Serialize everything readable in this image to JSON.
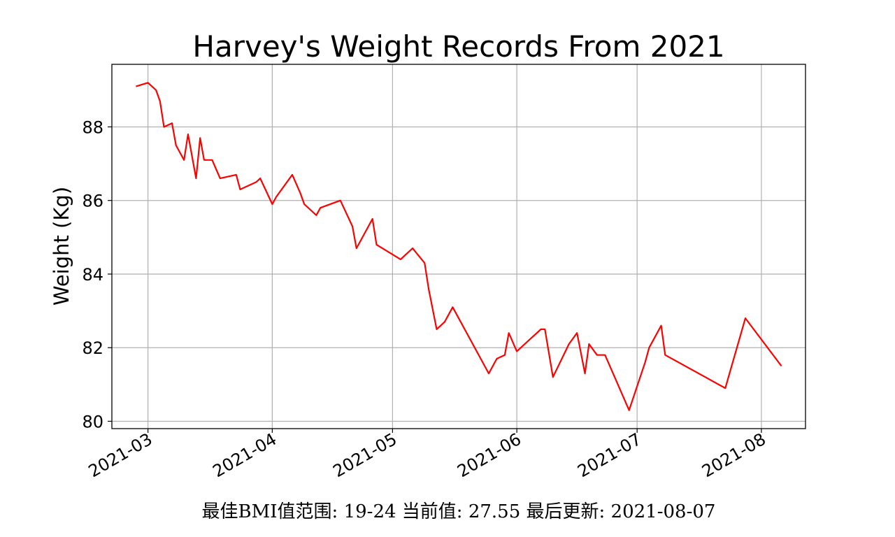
{
  "chart_data": {
    "type": "line",
    "title": "Harvey's Weight Records From 2021",
    "xlabel": "",
    "ylabel": "Weight (Kg)",
    "footer": "最佳BMI值范围: 19-24 当前值: 27.55 最后更新: 2021-08-07",
    "grid": true,
    "ylim": [
      79.8,
      89.7
    ],
    "yticks": [
      80,
      82,
      84,
      86,
      88
    ],
    "xlim": [
      "2021-02-20",
      "2021-08-12"
    ],
    "xticks": [
      "2021-03",
      "2021-04",
      "2021-05",
      "2021-06",
      "2021-07",
      "2021-08"
    ],
    "series": [
      {
        "color": "#ff0000",
        "x": [
          "2021-02-26",
          "2021-03-01",
          "2021-03-03",
          "2021-03-04",
          "2021-03-05",
          "2021-03-07",
          "2021-03-08",
          "2021-03-10",
          "2021-03-11",
          "2021-03-13",
          "2021-03-14",
          "2021-03-15",
          "2021-03-17",
          "2021-03-19",
          "2021-03-23",
          "2021-03-24",
          "2021-03-28",
          "2021-03-29",
          "2021-04-01",
          "2021-04-02",
          "2021-04-06",
          "2021-04-08",
          "2021-04-09",
          "2021-04-12",
          "2021-04-13",
          "2021-04-18",
          "2021-04-21",
          "2021-04-22",
          "2021-04-26",
          "2021-04-27",
          "2021-05-03",
          "2021-05-06",
          "2021-05-09",
          "2021-05-10",
          "2021-05-12",
          "2021-05-14",
          "2021-05-16",
          "2021-05-22",
          "2021-05-25",
          "2021-05-27",
          "2021-05-29",
          "2021-05-30",
          "2021-06-01",
          "2021-06-07",
          "2021-06-08",
          "2021-06-10",
          "2021-06-14",
          "2021-06-16",
          "2021-06-18",
          "2021-06-19",
          "2021-06-21",
          "2021-06-23",
          "2021-06-29",
          "2021-07-03",
          "2021-07-04",
          "2021-07-07",
          "2021-07-08",
          "2021-07-23",
          "2021-07-28",
          "2021-08-06"
        ],
        "y": [
          89.1,
          89.2,
          89.0,
          88.7,
          88.0,
          88.1,
          87.5,
          87.1,
          87.8,
          86.6,
          87.7,
          87.1,
          87.1,
          86.6,
          86.7,
          86.3,
          86.5,
          86.6,
          85.9,
          86.1,
          86.7,
          86.2,
          85.9,
          85.6,
          85.8,
          86.0,
          85.3,
          84.7,
          85.5,
          84.8,
          84.4,
          84.7,
          84.3,
          83.6,
          82.5,
          82.7,
          83.1,
          81.9,
          81.3,
          81.7,
          81.8,
          82.4,
          81.9,
          82.5,
          82.5,
          81.2,
          82.1,
          82.4,
          81.3,
          82.1,
          81.8,
          81.8,
          80.3,
          81.6,
          82.0,
          82.6,
          81.8,
          80.9,
          82.8,
          81.5
        ]
      }
    ]
  }
}
